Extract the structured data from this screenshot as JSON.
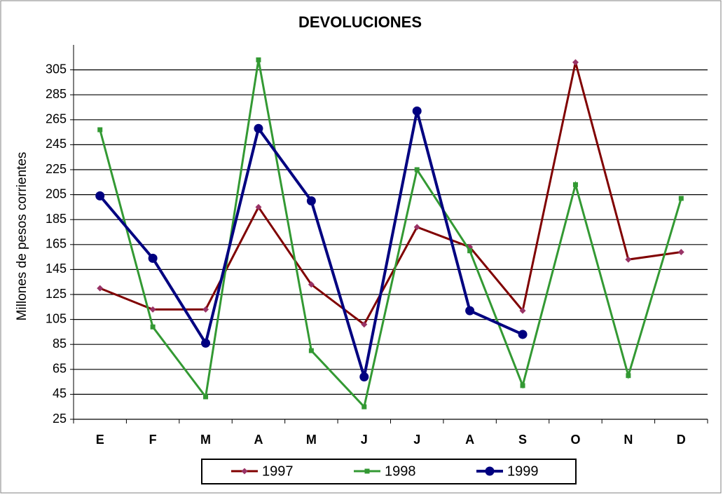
{
  "chart_data": {
    "type": "line",
    "title": "DEVOLUCIONES",
    "y_label": "Millones de pesos corrientes",
    "categories": [
      "E",
      "F",
      "M",
      "A",
      "M",
      "J",
      "J",
      "A",
      "S",
      "O",
      "N",
      "D"
    ],
    "series": [
      {
        "name": "1997",
        "color": "#800000",
        "marker_color": "#993366",
        "marker": "diamond",
        "values": [
          130,
          113,
          113,
          195,
          133,
          101,
          179,
          163,
          112,
          311,
          153,
          159
        ]
      },
      {
        "name": "1998",
        "color": "#339933",
        "marker_color": "#339933",
        "marker": "square",
        "values": [
          257,
          99,
          43,
          313,
          80,
          35,
          225,
          160,
          52,
          213,
          60,
          202
        ]
      },
      {
        "name": "1999",
        "color": "#000080",
        "marker_color": "#000080",
        "marker": "circle",
        "values": [
          204,
          154,
          86,
          258,
          200,
          59,
          272,
          112,
          93,
          null,
          null,
          null
        ]
      }
    ],
    "ylim": [
      25,
      325
    ],
    "yticks": [
      25,
      45,
      65,
      85,
      105,
      125,
      145,
      165,
      185,
      205,
      225,
      245,
      265,
      285,
      305
    ],
    "grid": true
  }
}
